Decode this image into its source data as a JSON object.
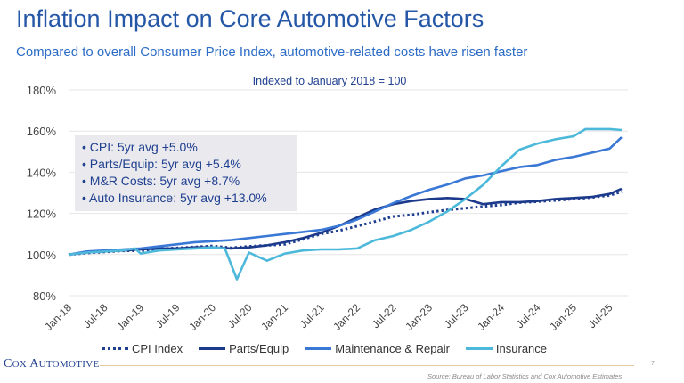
{
  "header": {
    "title": "Inflation Impact on Core Automotive Factors",
    "subtitle": "Compared to overall Consumer Price Index, automotive-related costs have risen faster"
  },
  "info_box": [
    "• CPI: 5yr avg +5.0%",
    "• Parts/Equip: 5yr avg +5.4%",
    "• M&R Costs: 5yr avg +8.7%",
    "• Auto Insurance: 5yr avg +13.0%"
  ],
  "footer": {
    "brand_cap1": "C",
    "brand_rest1": "OX ",
    "brand_cap2": "A",
    "brand_rest2": "UTOMOTIVE",
    "page_number": "7",
    "source": "Source: Bureau of Labor Statistics and Cox Automotive Estimates"
  },
  "chart_data": {
    "type": "line",
    "title": "",
    "note": "Indexed to January 2018 = 100",
    "xlabel": "",
    "ylabel": "",
    "ylim": [
      80,
      180
    ],
    "y_ticks": [
      "80%",
      "100%",
      "120%",
      "140%",
      "160%",
      "180%"
    ],
    "y_tick_values": [
      80,
      100,
      120,
      140,
      160,
      180
    ],
    "x_ticks": [
      "Jan-18",
      "Jul-18",
      "Jan-19",
      "Jul-19",
      "Jan-20",
      "Jul-20",
      "Jan-21",
      "Jul-21",
      "Jan-22",
      "Jul-22",
      "Jan-23",
      "Jul-23",
      "Jan-24",
      "Jul-24",
      "Jan-25",
      "Jul-25"
    ],
    "x_tick_dates": [
      "2018-01",
      "2018-07",
      "2019-01",
      "2019-07",
      "2020-01",
      "2020-07",
      "2021-01",
      "2021-07",
      "2022-01",
      "2022-07",
      "2023-01",
      "2023-07",
      "2024-01",
      "2024-07",
      "2025-01",
      "2025-07"
    ],
    "xlim": [
      "2018-01",
      "2025-10"
    ],
    "grid": "horizontal",
    "legend_position": "bottom",
    "series": [
      {
        "name": "CPI Index",
        "color": "#1f3f8f",
        "style": "dotted",
        "points": [
          [
            "2018-01",
            100
          ],
          [
            "2018-04",
            100.8
          ],
          [
            "2018-07",
            101.3
          ],
          [
            "2018-10",
            101.8
          ],
          [
            "2019-01",
            101.9
          ],
          [
            "2019-04",
            102.8
          ],
          [
            "2019-07",
            103.2
          ],
          [
            "2019-10",
            103.7
          ],
          [
            "2020-01",
            104.2
          ],
          [
            "2020-04",
            103.3
          ],
          [
            "2020-07",
            104.0
          ],
          [
            "2020-10",
            104.5
          ],
          [
            "2021-01",
            105.0
          ],
          [
            "2021-04",
            107.4
          ],
          [
            "2021-07",
            110.0
          ],
          [
            "2021-10",
            111.6
          ],
          [
            "2022-01",
            113.8
          ],
          [
            "2022-04",
            116.1
          ],
          [
            "2022-07",
            118.5
          ],
          [
            "2022-10",
            119.3
          ],
          [
            "2023-01",
            120.6
          ],
          [
            "2023-04",
            121.7
          ],
          [
            "2023-07",
            122.5
          ],
          [
            "2023-10",
            123.4
          ],
          [
            "2024-01",
            124.1
          ],
          [
            "2024-04",
            125.3
          ],
          [
            "2024-07",
            125.7
          ],
          [
            "2024-10",
            126.3
          ],
          [
            "2025-01",
            127.0
          ],
          [
            "2025-04",
            127.8
          ],
          [
            "2025-07",
            128.8
          ],
          [
            "2025-09",
            130.5
          ]
        ]
      },
      {
        "name": "Parts/Equip",
        "color": "#1c3a8c",
        "style": "solid",
        "points": [
          [
            "2018-01",
            100
          ],
          [
            "2018-04",
            101
          ],
          [
            "2018-07",
            101.5
          ],
          [
            "2018-10",
            102
          ],
          [
            "2019-01",
            102.5
          ],
          [
            "2019-04",
            103
          ],
          [
            "2019-07",
            103
          ],
          [
            "2019-10",
            103.5
          ],
          [
            "2020-01",
            103.5
          ],
          [
            "2020-04",
            103
          ],
          [
            "2020-07",
            103.5
          ],
          [
            "2020-10",
            104.5
          ],
          [
            "2021-01",
            106
          ],
          [
            "2021-04",
            108
          ],
          [
            "2021-07",
            110.5
          ],
          [
            "2021-10",
            114
          ],
          [
            "2022-01",
            118
          ],
          [
            "2022-04",
            122
          ],
          [
            "2022-07",
            124.5
          ],
          [
            "2022-10",
            126
          ],
          [
            "2023-01",
            127
          ],
          [
            "2023-04",
            127.5
          ],
          [
            "2023-07",
            127
          ],
          [
            "2023-10",
            124.5
          ],
          [
            "2024-01",
            125.5
          ],
          [
            "2024-04",
            125.5
          ],
          [
            "2024-07",
            126
          ],
          [
            "2024-10",
            127
          ],
          [
            "2025-01",
            127.5
          ],
          [
            "2025-04",
            128
          ],
          [
            "2025-07",
            129.5
          ],
          [
            "2025-09",
            132
          ]
        ]
      },
      {
        "name": "Maintenance & Repair",
        "color": "#3a78d6",
        "style": "solid",
        "points": [
          [
            "2018-01",
            100
          ],
          [
            "2018-04",
            101.5
          ],
          [
            "2018-07",
            102
          ],
          [
            "2018-10",
            102.5
          ],
          [
            "2019-01",
            103
          ],
          [
            "2019-04",
            104
          ],
          [
            "2019-07",
            105
          ],
          [
            "2019-10",
            106
          ],
          [
            "2020-01",
            106.5
          ],
          [
            "2020-04",
            107
          ],
          [
            "2020-07",
            108
          ],
          [
            "2020-10",
            109
          ],
          [
            "2021-01",
            110
          ],
          [
            "2021-04",
            111
          ],
          [
            "2021-07",
            112
          ],
          [
            "2021-10",
            114
          ],
          [
            "2022-01",
            117
          ],
          [
            "2022-04",
            121
          ],
          [
            "2022-07",
            125
          ],
          [
            "2022-10",
            128.5
          ],
          [
            "2023-01",
            131.5
          ],
          [
            "2023-04",
            134
          ],
          [
            "2023-07",
            137
          ],
          [
            "2023-10",
            138.5
          ],
          [
            "2024-01",
            140.5
          ],
          [
            "2024-04",
            142.5
          ],
          [
            "2024-07",
            143.5
          ],
          [
            "2024-10",
            146
          ],
          [
            "2025-01",
            147.5
          ],
          [
            "2025-04",
            149.5
          ],
          [
            "2025-07",
            151.5
          ],
          [
            "2025-09",
            157
          ]
        ]
      },
      {
        "name": "Insurance",
        "color": "#4cb8da",
        "style": "solid",
        "points": [
          [
            "2018-01",
            100
          ],
          [
            "2018-04",
            101
          ],
          [
            "2018-07",
            101.5
          ],
          [
            "2018-10",
            102
          ],
          [
            "2018-12",
            103
          ],
          [
            "2019-01",
            100.5
          ],
          [
            "2019-04",
            102
          ],
          [
            "2019-07",
            102.5
          ],
          [
            "2019-10",
            103
          ],
          [
            "2020-01",
            103.5
          ],
          [
            "2020-03",
            103
          ],
          [
            "2020-05",
            88
          ],
          [
            "2020-07",
            101
          ],
          [
            "2020-10",
            97
          ],
          [
            "2021-01",
            100.5
          ],
          [
            "2021-04",
            102
          ],
          [
            "2021-07",
            102.5
          ],
          [
            "2021-10",
            102.5
          ],
          [
            "2022-01",
            103
          ],
          [
            "2022-04",
            107
          ],
          [
            "2022-07",
            109
          ],
          [
            "2022-10",
            112
          ],
          [
            "2023-01",
            116
          ],
          [
            "2023-04",
            121
          ],
          [
            "2023-07",
            127
          ],
          [
            "2023-10",
            134
          ],
          [
            "2024-01",
            143
          ],
          [
            "2024-04",
            151
          ],
          [
            "2024-07",
            154
          ],
          [
            "2024-10",
            156
          ],
          [
            "2025-01",
            157.5
          ],
          [
            "2025-03",
            161
          ],
          [
            "2025-07",
            161
          ],
          [
            "2025-09",
            160.5
          ]
        ]
      }
    ]
  }
}
